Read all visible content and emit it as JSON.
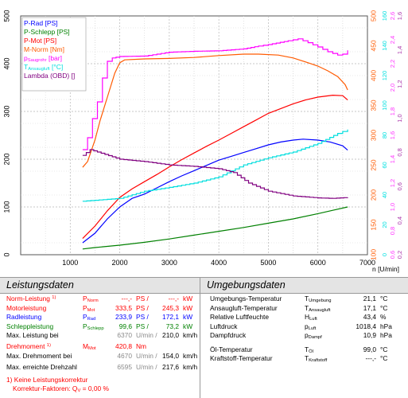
{
  "chart_data": {
    "type": "line",
    "x": {
      "label": "n [U/min]",
      "ticks": [
        1000,
        2000,
        3000,
        4000,
        5000,
        6000,
        7000
      ],
      "lim": [
        0,
        7000
      ],
      "grid": true
    },
    "y_left": {
      "ticks": [
        "0",
        "100",
        "200",
        "300",
        "400",
        "500"
      ],
      "lim": [
        0,
        500
      ]
    },
    "y_right_axes": [
      {
        "color": "#ff5a00",
        "ticks": [
          "100",
          "150",
          "200",
          "250",
          "300",
          "350",
          "400",
          "450",
          "500"
        ]
      },
      {
        "color": "#00e0e0",
        "ticks": [
          "0",
          "20",
          "40",
          "60",
          "80",
          "100",
          "120",
          "140",
          "160"
        ]
      },
      {
        "color": "#ff33ff",
        "ticks": [
          "0,6",
          "0,8",
          "1,0",
          "1,2",
          "1,4",
          "1,6",
          "1,8",
          "2,0",
          "2,2",
          "2,4",
          "2,6"
        ]
      },
      {
        "color": "#aa33aa",
        "ticks": [
          "0,2",
          "0,4",
          "0,6",
          "0,8",
          "1,0",
          "1,2",
          "1,4",
          "1,6"
        ]
      }
    ],
    "legend": {
      "placement": "top-left",
      "entries": [
        {
          "html": "P-Rad [PS]",
          "color": "#0000ff"
        },
        {
          "html": "P-Schlepp [PS]",
          "color": "#008000"
        },
        {
          "html": "P-Mot [PS]",
          "color": "#ff0000"
        },
        {
          "html": "M-Norm [Nm]",
          "color": "#ff5a00"
        },
        {
          "html": "p<sub>Saugrohr</sub> [bar]",
          "color": "#ff00ff"
        },
        {
          "html": "T<sub>Ansaugluft</sub> [°C]",
          "color": "#00dede"
        },
        {
          "html": "Lambda (OBD) []",
          "color": "#800080"
        }
      ]
    },
    "series": [
      {
        "name": "P-Rad",
        "color": "#0000ff",
        "points": [
          [
            1250,
            25
          ],
          [
            1500,
            45
          ],
          [
            1750,
            75
          ],
          [
            2000,
            100
          ],
          [
            2250,
            118
          ],
          [
            2500,
            127
          ],
          [
            2750,
            140
          ],
          [
            3000,
            153
          ],
          [
            3250,
            165
          ],
          [
            3500,
            176
          ],
          [
            3750,
            187
          ],
          [
            4000,
            198
          ],
          [
            4250,
            206
          ],
          [
            4500,
            214
          ],
          [
            4750,
            222
          ],
          [
            5000,
            230
          ],
          [
            5250,
            236
          ],
          [
            5500,
            240
          ],
          [
            5700,
            242
          ],
          [
            6000,
            240
          ],
          [
            6250,
            236
          ],
          [
            6500,
            228
          ],
          [
            6600,
            219
          ]
        ]
      },
      {
        "name": "P-Schlepp",
        "color": "#008000",
        "points": [
          [
            1250,
            12
          ],
          [
            1500,
            15
          ],
          [
            2000,
            20
          ],
          [
            2500,
            26
          ],
          [
            3000,
            33
          ],
          [
            3500,
            41
          ],
          [
            4000,
            49
          ],
          [
            4500,
            57
          ],
          [
            5000,
            66
          ],
          [
            5500,
            75
          ],
          [
            6000,
            86
          ],
          [
            6300,
            93
          ],
          [
            6600,
            100
          ]
        ]
      },
      {
        "name": "P-Mot",
        "color": "#ff0000",
        "points": [
          [
            1250,
            34
          ],
          [
            1500,
            60
          ],
          [
            1750,
            92
          ],
          [
            2000,
            120
          ],
          [
            2250,
            138
          ],
          [
            2500,
            153
          ],
          [
            2750,
            168
          ],
          [
            3000,
            184
          ],
          [
            3250,
            199
          ],
          [
            3500,
            213
          ],
          [
            3750,
            227
          ],
          [
            4000,
            240
          ],
          [
            4250,
            254
          ],
          [
            4500,
            268
          ],
          [
            4750,
            282
          ],
          [
            5000,
            296
          ],
          [
            5250,
            306
          ],
          [
            5500,
            316
          ],
          [
            5750,
            324
          ],
          [
            6000,
            330
          ],
          [
            6300,
            334
          ],
          [
            6500,
            333
          ],
          [
            6600,
            324
          ]
        ]
      },
      {
        "name": "M-Norm",
        "color": "#ff5a00",
        "points": [
          [
            1250,
            183
          ],
          [
            1350,
            195
          ],
          [
            1500,
            240
          ],
          [
            1600,
            280
          ],
          [
            1750,
            330
          ],
          [
            1900,
            380
          ],
          [
            2000,
            402
          ],
          [
            2100,
            408
          ],
          [
            2500,
            410
          ],
          [
            3000,
            411
          ],
          [
            3500,
            413
          ],
          [
            4000,
            417
          ],
          [
            4500,
            420
          ],
          [
            4800,
            420
          ],
          [
            5200,
            418
          ],
          [
            5500,
            412
          ],
          [
            5800,
            402
          ],
          [
            6000,
            395
          ],
          [
            6200,
            385
          ],
          [
            6400,
            373
          ],
          [
            6550,
            356
          ],
          [
            6600,
            345
          ]
        ]
      },
      {
        "name": "pSaugrohr",
        "color": "#ff00ff",
        "step": true,
        "points": [
          [
            1250,
            220
          ],
          [
            1350,
            245
          ],
          [
            1450,
            285
          ],
          [
            1550,
            320
          ],
          [
            1650,
            370
          ],
          [
            1750,
            405
          ],
          [
            1850,
            412
          ],
          [
            2000,
            415
          ],
          [
            2500,
            416
          ],
          [
            3000,
            424
          ],
          [
            3500,
            426
          ],
          [
            4000,
            427
          ],
          [
            4500,
            431
          ],
          [
            4800,
            437
          ],
          [
            5000,
            440
          ],
          [
            5400,
            448
          ],
          [
            5600,
            452
          ],
          [
            5800,
            444
          ],
          [
            6000,
            435
          ],
          [
            6200,
            425
          ],
          [
            6400,
            418
          ],
          [
            6500,
            420
          ],
          [
            6600,
            428
          ]
        ]
      },
      {
        "name": "TAnsaugluft",
        "color": "#00dede",
        "step": true,
        "points": [
          [
            1250,
            112
          ],
          [
            2000,
            118
          ],
          [
            2500,
            133
          ],
          [
            3000,
            141
          ],
          [
            3500,
            150
          ],
          [
            4000,
            163
          ],
          [
            4500,
            188
          ],
          [
            5000,
            203
          ],
          [
            5500,
            215
          ],
          [
            6000,
            233
          ],
          [
            6400,
            254
          ],
          [
            6600,
            262
          ]
        ]
      },
      {
        "name": "Lambda",
        "color": "#800080",
        "step": true,
        "points": [
          [
            1250,
            208
          ],
          [
            1400,
            220
          ],
          [
            1700,
            210
          ],
          [
            2000,
            200
          ],
          [
            2500,
            195
          ],
          [
            3000,
            188
          ],
          [
            3500,
            185
          ],
          [
            4000,
            180
          ],
          [
            4300,
            172
          ],
          [
            4600,
            150
          ],
          [
            5000,
            133
          ],
          [
            5500,
            123
          ],
          [
            6000,
            119
          ],
          [
            6300,
            118
          ],
          [
            6600,
            120
          ]
        ]
      }
    ]
  },
  "left_panel": {
    "title": "Leistungsdaten",
    "rows": [
      {
        "label": "Norm-Leistung <sup>1)</sup>",
        "color": "#ff0000",
        "sym": "P<sub>Norm</sub>",
        "v1": "---,-",
        "u1": "PS",
        "v2": "---,-",
        "u2": "kW"
      },
      {
        "label": "Motorleistung",
        "color": "#ff0000",
        "sym": "P<sub>Mot</sub>",
        "v1": "333,5",
        "u1": "PS",
        "v2": "245,3",
        "u2": "kW"
      },
      {
        "label": "Radleistung",
        "color": "#0000ff",
        "sym": "P<sub>Rad</sub>",
        "v1": "233,9",
        "u1": "PS",
        "v2": "172,1",
        "u2": "kW"
      },
      {
        "label": "Schleppleistung",
        "color": "#008000",
        "sym": "P<sub>Schlepp</sub>",
        "v1": "99,6",
        "u1": "PS",
        "v2": "73,2",
        "u2": "kW"
      },
      {
        "label": "Max. Leistung bei",
        "color": "#000000",
        "sym": "",
        "v1": "6370",
        "u1": "U/min",
        "v2": "210,0",
        "u2": "km/h",
        "gray1": true
      }
    ],
    "torque_rows": [
      {
        "label": "Drehmoment <sup>1)</sup>",
        "color": "#ff0000",
        "sym": "M<sub>Mot</sub>",
        "v1": "420,8",
        "u1": "Nm",
        "v2": "",
        "u2": ""
      },
      {
        "label": "Max. Drehmoment bei",
        "color": "#000000",
        "sym": "",
        "v1": "4670",
        "u1": "U/min",
        "v2": "154,0",
        "u2": "km/h",
        "gray1": true
      }
    ],
    "speed_row": {
      "label": "Max. erreichte Drehzahl",
      "v1": "6595",
      "u1": "U/min",
      "v2": "217,6",
      "u2": "km/h"
    },
    "footnote1": "1) Keine Leistungskorrektur",
    "footnote2": "Korrektur-Faktoren: Q<sub>V</sub> =  0,00 %"
  },
  "right_panel": {
    "title": "Umgebungsdaten",
    "rows": [
      {
        "label": "Umgebungs-Temperatur",
        "sym": "T<sub>Umgebung</sub>",
        "val": "21,1",
        "unit": "°C"
      },
      {
        "label": "Ansaugluft-Temperatur",
        "sym": "T<sub>Ansaugluft</sub>",
        "val": "17,1",
        "unit": "°C"
      },
      {
        "label": "Relative Luftfeuchte",
        "sym": "H<sub>Luft</sub>",
        "val": "43,4",
        "unit": "%"
      },
      {
        "label": "Luftdruck",
        "sym": "p<sub>Luft</sub>",
        "val": "1018,4",
        "unit": "hPa"
      },
      {
        "label": "Dampfdruck",
        "sym": "p<sub>Dampf</sub>",
        "val": "10,9",
        "unit": "hPa"
      },
      {
        "label": "Öl-Temperatur",
        "sym": "T<sub>Öl</sub>",
        "val": "99,0",
        "unit": "°C"
      },
      {
        "label": "Kraftstoff-Temperatur",
        "sym": "T<sub>Kraftstoff</sub>",
        "val": "---,-",
        "unit": "°C"
      }
    ]
  }
}
